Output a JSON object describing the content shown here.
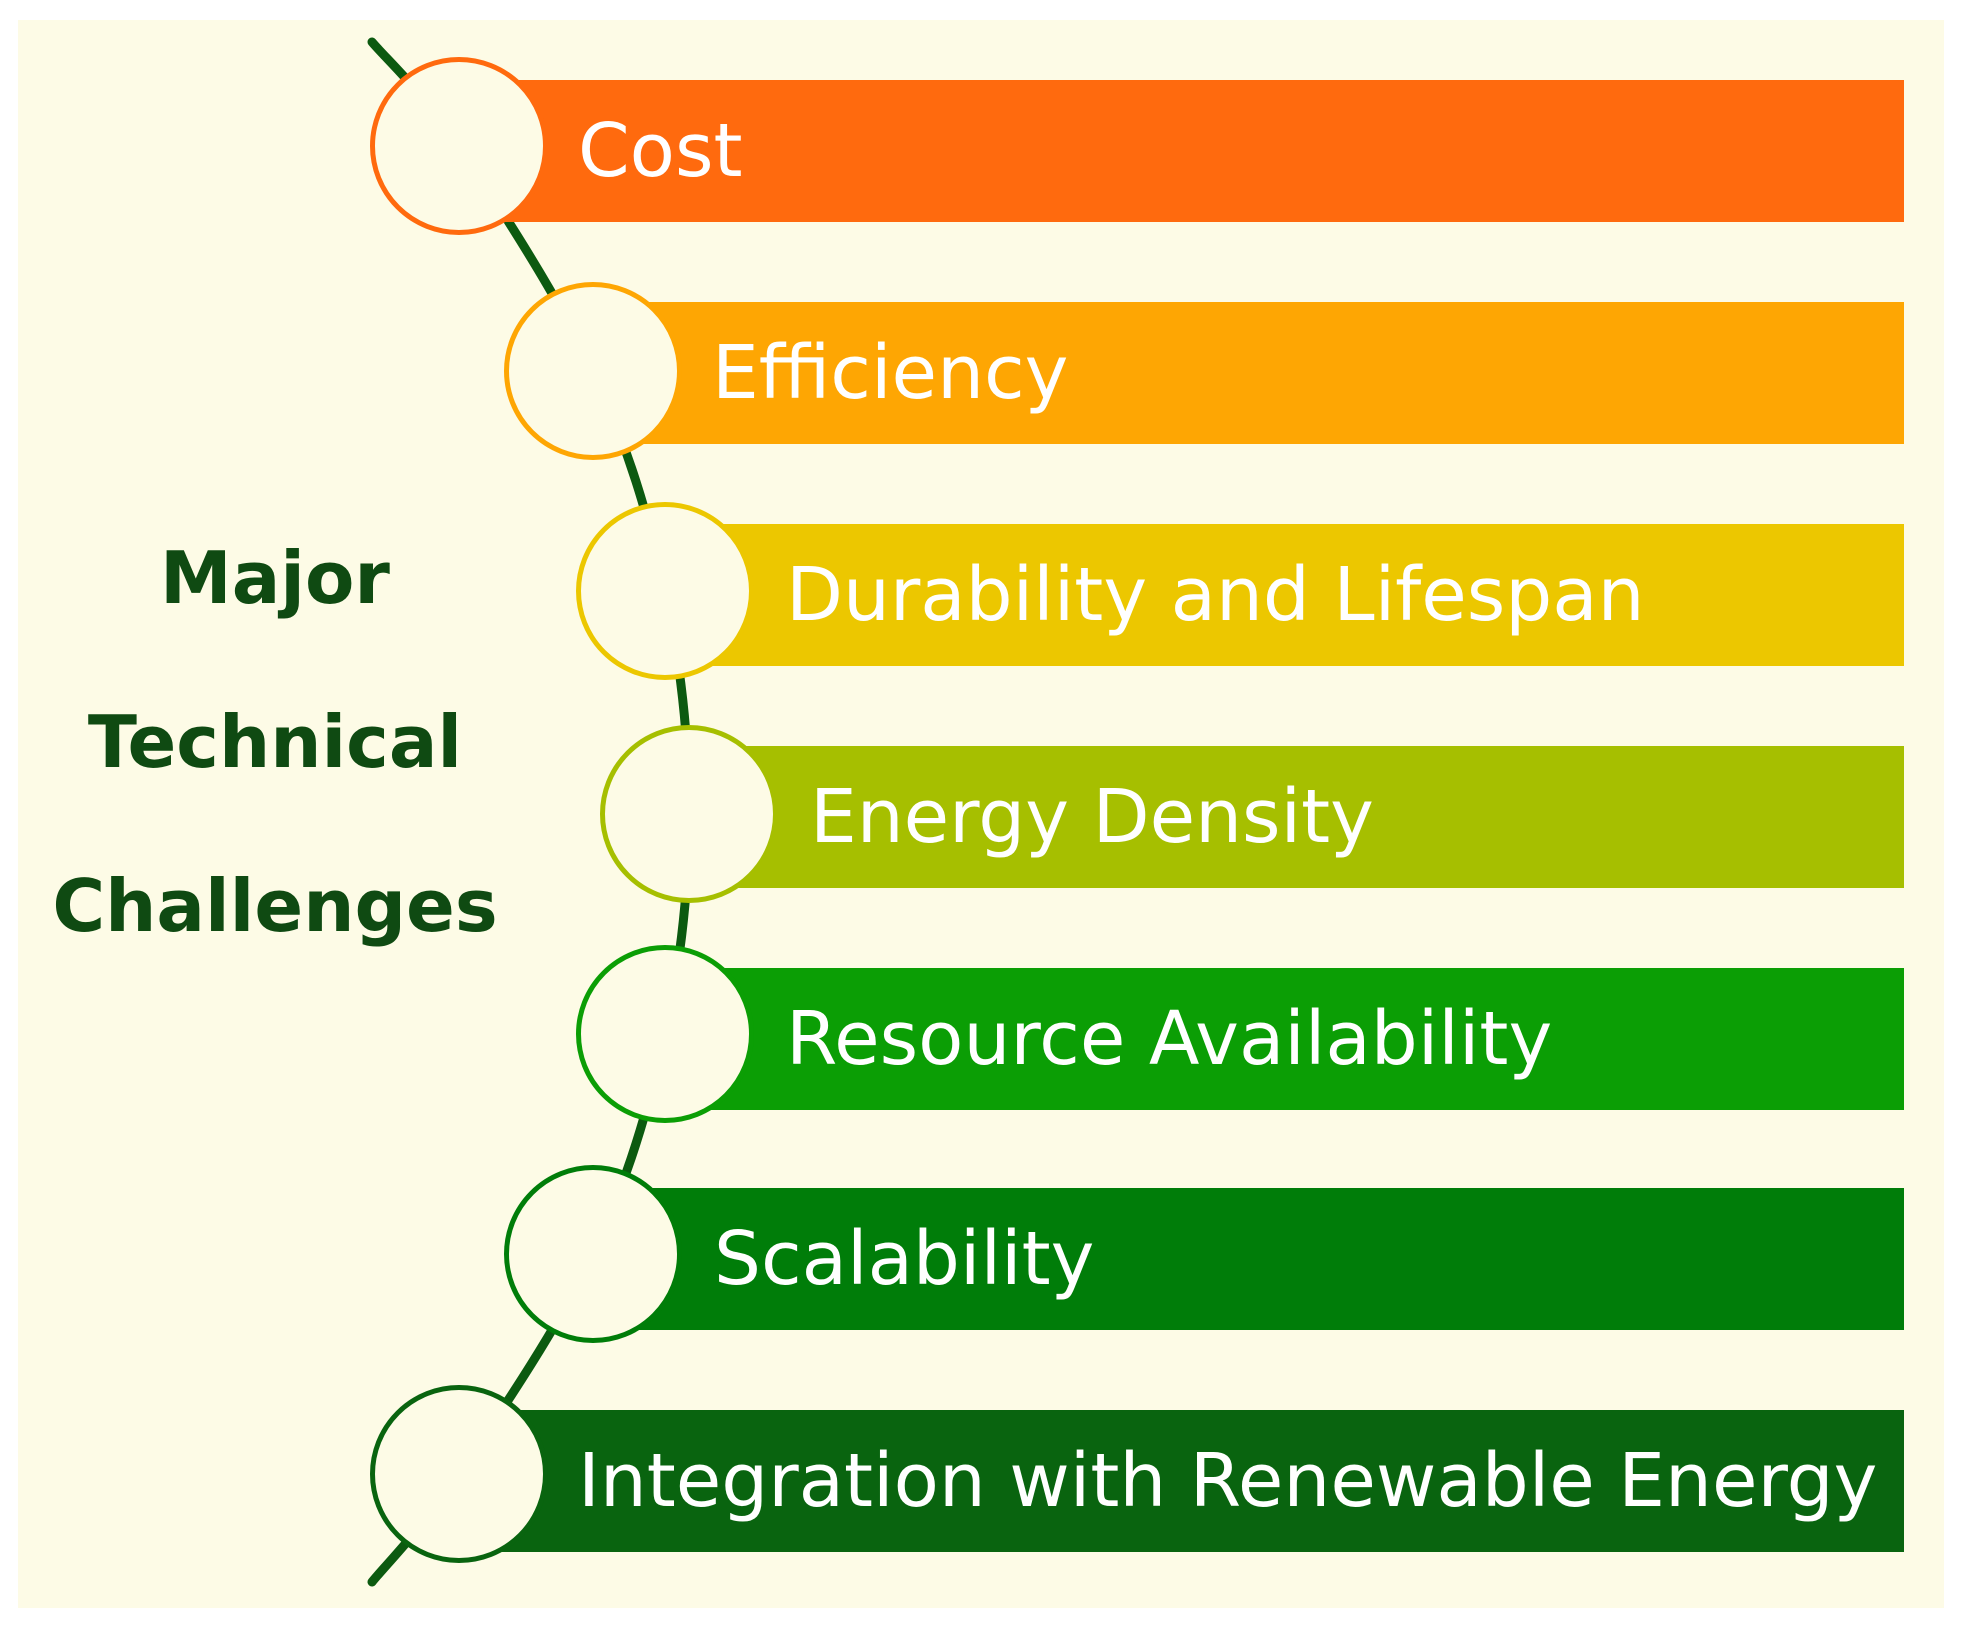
{
  "title": {
    "line1": "Major",
    "line2": "Technical",
    "line3": "Challenges"
  },
  "challenges": [
    {
      "label": "Cost",
      "color": "#ff6a0e"
    },
    {
      "label": "Efficiency",
      "color": "#fea603"
    },
    {
      "label": "Durability and Lifespan",
      "color": "#ecc700"
    },
    {
      "label": "Energy Density",
      "color": "#a6bf00"
    },
    {
      "label": "Resource Availability",
      "color": "#0b9e05"
    },
    {
      "label": "Scalability",
      "color": "#007d09"
    },
    {
      "label": "Integration with Renewable Energy",
      "color": "#09640f"
    }
  ],
  "colors": {
    "background": "#fdfbe6",
    "spine": "#0c5a10",
    "title_text": "#0f4a12",
    "bar_text": "#ffffff"
  }
}
